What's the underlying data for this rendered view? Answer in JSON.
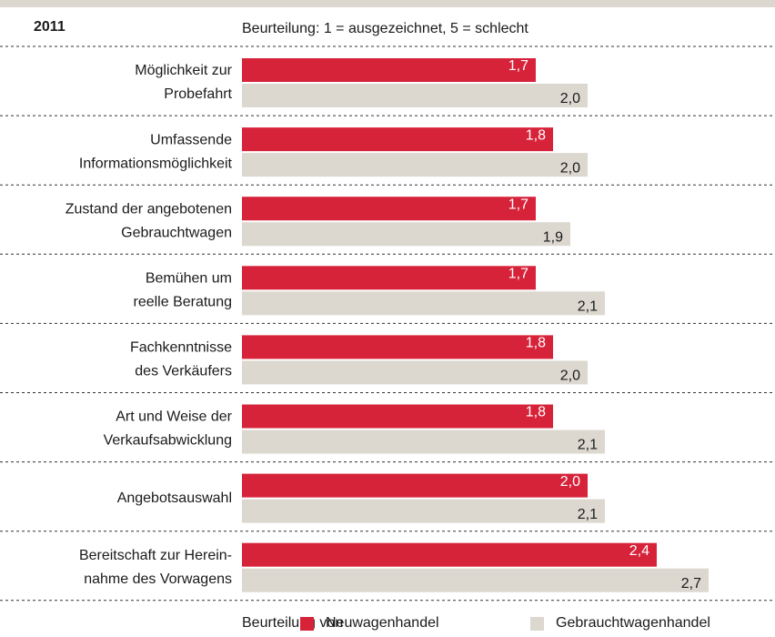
{
  "chart_data": {
    "type": "bar",
    "orientation": "horizontal",
    "title": "2011",
    "subtitle": "Beurteilung: 1 = ausgezeichnet, 5 = schlecht",
    "categories": [
      [
        "Möglichkeit zur",
        "Probefahrt"
      ],
      [
        "Umfassende",
        "Informationsmöglichkeit"
      ],
      [
        "Zustand der angebotenen",
        "Gebrauchtwagen"
      ],
      [
        "Bemühen um",
        "reelle Beratung"
      ],
      [
        "Fachkenntnisse",
        "des Verkäufers"
      ],
      [
        "Art und Weise der",
        "Verkaufsabwicklung"
      ],
      [
        "Angebotsauswahl"
      ],
      [
        "Bereitschaft zur Herein-",
        "nahme des Vorwagens"
      ]
    ],
    "legend_title": "Beurteilung von",
    "series": [
      {
        "name": "Neuwagenhandel",
        "color": "#d7233a",
        "values": [
          1.7,
          1.8,
          1.7,
          1.7,
          1.8,
          1.8,
          2.0,
          2.4
        ],
        "value_labels": [
          "1,7",
          "1,8",
          "1,7",
          "1,7",
          "1,8",
          "1,8",
          "2,0",
          "2,4"
        ]
      },
      {
        "name": "Gebrauchtwagenhandel",
        "color": "#dcd8d0",
        "values": [
          2.0,
          2.0,
          1.9,
          2.1,
          2.0,
          2.1,
          2.1,
          2.7
        ],
        "value_labels": [
          "2,0",
          "2,0",
          "1,9",
          "2,1",
          "2,0",
          "2,1",
          "2,1",
          "2,7"
        ]
      }
    ],
    "xlim": [
      0,
      3
    ]
  }
}
